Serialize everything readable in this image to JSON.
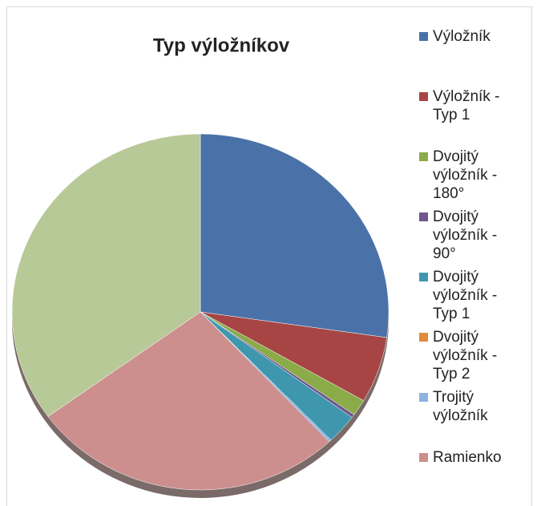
{
  "chart_data": {
    "type": "pie",
    "title": "Typ výložníkov",
    "categories": [
      "Výložník",
      "Výložník - Typ 1",
      "Dvojitý výložník - 180°",
      "Dvojitý výložník - 90°",
      "Dvojitý výložník - Typ 1",
      "Dvojitý výložník - Typ 2",
      "Trojitý výložník",
      "Ramienko",
      null
    ],
    "values": [
      27.3,
      6,
      1.5,
      0.3,
      2.7,
      0,
      0.2,
      27,
      35
    ],
    "colors": [
      "#4a72a8",
      "#a64544",
      "#8aab48",
      "#6f5690",
      "#3f97ae",
      "#e08a3c",
      "#8db3e2",
      "#cc8f8e",
      "#b8c998"
    ],
    "legend": "right"
  }
}
